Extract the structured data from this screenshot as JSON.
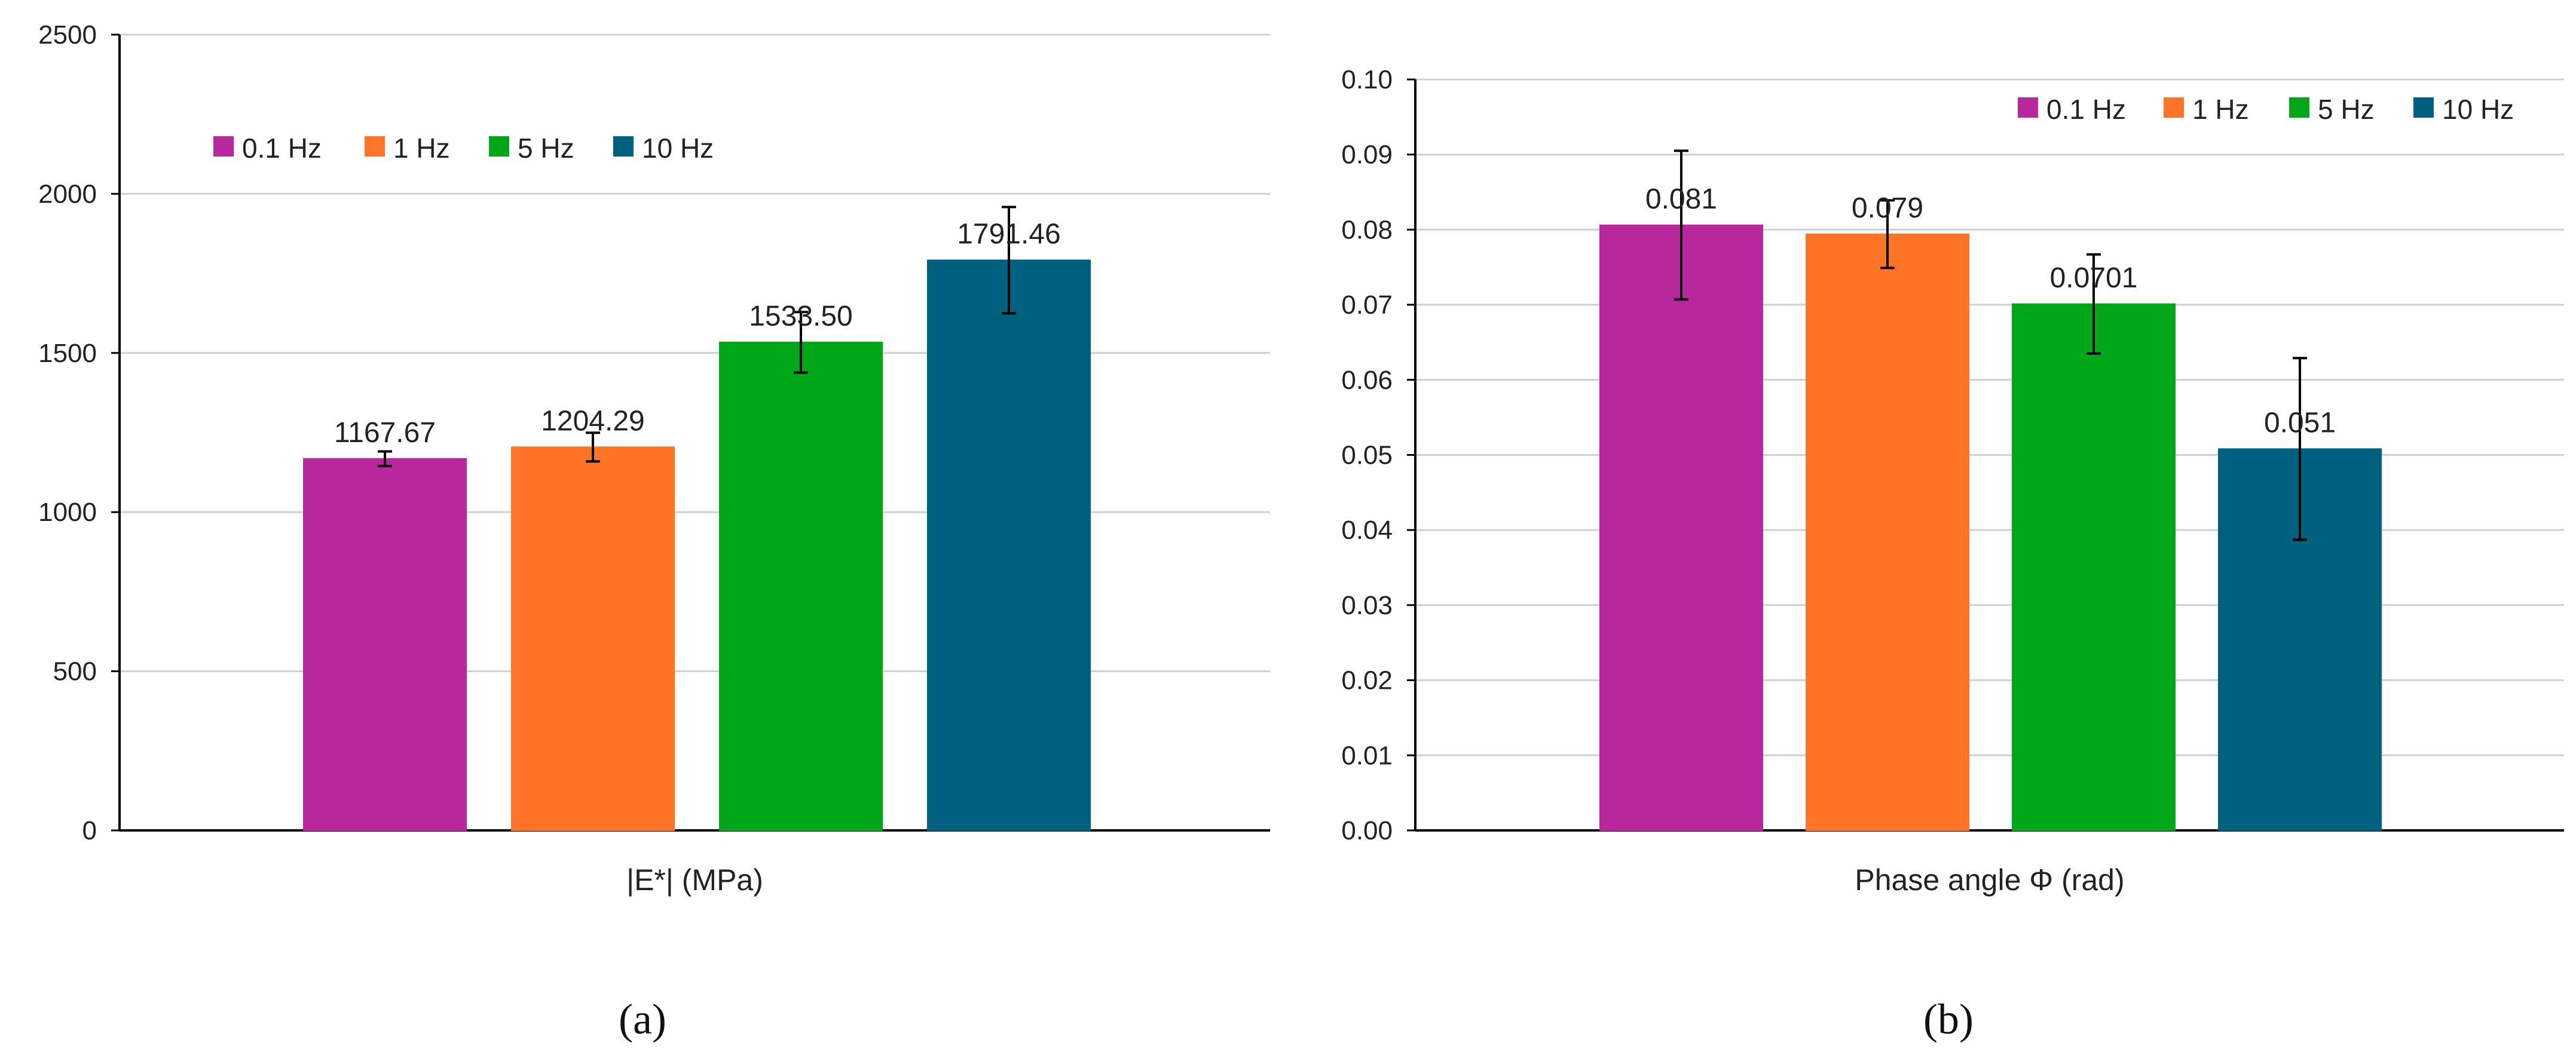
{
  "figure": {
    "panel_labels": [
      "(a)",
      "(b)"
    ]
  },
  "colors": {
    "freq_0_1": "#B8289C",
    "freq_1": "#FF7427",
    "freq_5": "#00A819",
    "freq_10": "#00617F",
    "grid": "#D0D0D0",
    "axis": "#000000"
  },
  "chart_data": [
    {
      "type": "bar",
      "panel": "(a)",
      "xlabel": "|E*| (MPa)",
      "ylabel": "",
      "title": "",
      "ylim": [
        0,
        2500
      ],
      "yticks": [
        "0",
        "500",
        "1000",
        "1500",
        "2000",
        "2500"
      ],
      "grid": true,
      "legend": {
        "placement": "top-left",
        "entries": [
          "0.1 Hz",
          "1 Hz",
          "5 Hz",
          "10 Hz"
        ]
      },
      "categories": [
        "|E*| (MPa)"
      ],
      "series": [
        {
          "name": "0.1 Hz",
          "values": [
            1167.67
          ],
          "label": "1167.67",
          "error": [
            23
          ],
          "color": "#B8289C"
        },
        {
          "name": "1 Hz",
          "values": [
            1204.29
          ],
          "label": "1204.29",
          "error": [
            45
          ],
          "color": "#FF7427"
        },
        {
          "name": "5 Hz",
          "values": [
            1533.5
          ],
          "label": "1533.50",
          "error": [
            95
          ],
          "color": "#00A819"
        },
        {
          "name": "10 Hz",
          "values": [
            1791.46
          ],
          "label": "1791.46",
          "error": [
            167
          ],
          "color": "#00617F"
        }
      ]
    },
    {
      "type": "bar",
      "panel": "(b)",
      "xlabel": "Phase angle Φ  (rad)",
      "ylabel": "",
      "title": "",
      "ylim": [
        0,
        0.1
      ],
      "yticks": [
        "0.00",
        "0.01",
        "0.02",
        "0.03",
        "0.04",
        "0.05",
        "0.06",
        "0.07",
        "0.08",
        "0.09",
        "0.10"
      ],
      "grid": true,
      "legend": {
        "placement": "top-right",
        "entries": [
          "0.1 Hz",
          "1 Hz",
          "5 Hz",
          "10 Hz"
        ]
      },
      "categories": [
        "Phase angle Φ  (rad)"
      ],
      "series": [
        {
          "name": "0.1 Hz",
          "values": [
            0.0806
          ],
          "label": "0.081",
          "error": [
            0.0099
          ],
          "color": "#B8289C"
        },
        {
          "name": "1 Hz",
          "values": [
            0.0794
          ],
          "label": "0.079",
          "error": [
            0.0045
          ],
          "color": "#FF7427"
        },
        {
          "name": "5 Hz",
          "values": [
            0.0701
          ],
          "label": "0.0701",
          "error": [
            0.0066
          ],
          "color": "#00A819"
        },
        {
          "name": "10 Hz",
          "values": [
            0.0508
          ],
          "label": "0.051",
          "error": [
            0.0121
          ],
          "color": "#00617F"
        }
      ]
    }
  ]
}
